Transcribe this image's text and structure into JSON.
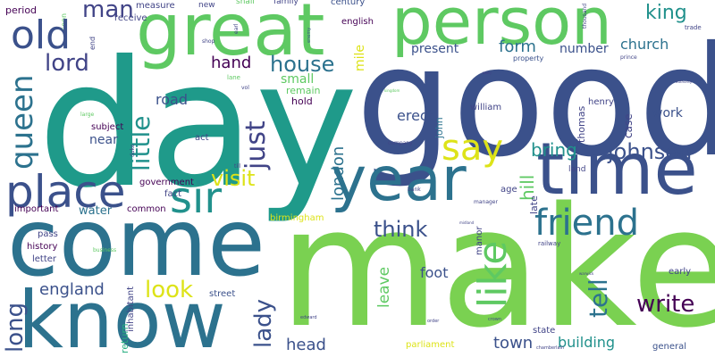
{
  "words": {
    "day": "day",
    "good": "good",
    "come": "come",
    "make": "make",
    "know": "know",
    "person": "person",
    "great": "great",
    "time": "time",
    "year": "year",
    "place": "place",
    "sir": "sir",
    "friend": "friend",
    "like": "like",
    "say": "say",
    "old": "old",
    "queen": "queen",
    "johnson": "johnson",
    "man": "man",
    "house": "house",
    "king": "king",
    "lord": "lord",
    "think": "think",
    "little": "little",
    "just": "just",
    "visit": "visit",
    "look": "look",
    "write": "write",
    "tell": "tell",
    "england": "england",
    "long": "long",
    "lady": "lady",
    "london": "london",
    "bring": "bring",
    "form": "form",
    "church": "church",
    "hand": "hand",
    "head": "head",
    "town": "town",
    "building": "building",
    "present": "present",
    "number": "number",
    "erect": "erect",
    "road": "road",
    "small": "small",
    "foot": "foot",
    "leave": "leave",
    "hill": "hill",
    "near": "near",
    "work": "work",
    "water": "water",
    "mile": "mile",
    "remain": "remain",
    "hold": "hold",
    "century": "century",
    "english": "english",
    "family": "family",
    "shall": "shall",
    "new": "new",
    "measure": "measure",
    "receive": "receive",
    "period": "period",
    "soon": "soon",
    "end": "end",
    "shop": "shop",
    "earl": "earl",
    "lane": "lane",
    "vol": "vol",
    "henry": "henry",
    "william": "william",
    "thomas": "thomas",
    "case": "case",
    "land": "land",
    "subject": "subject",
    "act": "act",
    "government": "government",
    "fact": "fact",
    "common": "common",
    "important": "important",
    "pass": "pass",
    "history": "history",
    "letter": "letter",
    "birmingham": "birmingham",
    "parliament": "parliament",
    "state": "state",
    "general": "general",
    "street": "street",
    "return": "return",
    "inhabitant": "inhabitant",
    "early": "early",
    "late": "late",
    "age": "age",
    "manor": "manor",
    "railway": "railway",
    "john": "john",
    "company": "company",
    "property": "property",
    "trade": "trade",
    "prince": "prince",
    "authority": "authority",
    "thousand": "thousand",
    "army": "army",
    "enemy": "enemy",
    "large": "large",
    "till": "till",
    "duke": "duke",
    "business": "business",
    "bank": "bank",
    "manager": "manager",
    "midland": "midland",
    "order": "order",
    "crown": "crown",
    "edward": "edward",
    "chamberlain": "chamberlain",
    "warwick": "warwick",
    "kingdom": "kingdom",
    "use": "use"
  },
  "colors": {
    "navy": "#3b518b",
    "teal": "#21918c",
    "green": "#5ec962",
    "lime": "#7ad151",
    "yellow": "#dde318",
    "purple": "#440154",
    "indigo": "#414487",
    "blue": "#2c728e",
    "sea": "#28ae80",
    "dkteal": "#1f9a8a"
  }
}
